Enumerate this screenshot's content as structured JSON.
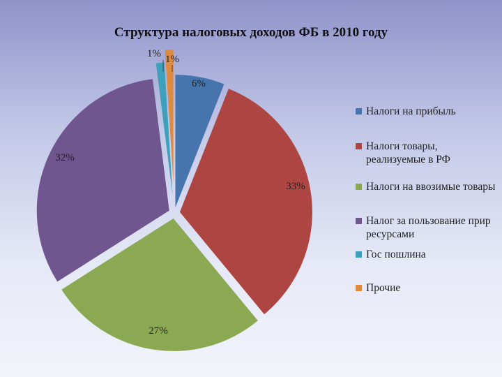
{
  "chart_data": {
    "type": "pie",
    "title": "Структура налоговых доходов ФБ в 2010 году",
    "slices": [
      {
        "name": "Налоги на прибыль",
        "value": 6,
        "label": "6%",
        "color": "#4674ac"
      },
      {
        "name": "Налоги товары, реализуемые в РФ",
        "value": 33,
        "label": "33%",
        "color": "#ad4643"
      },
      {
        "name": "Налоги на ввозимые товары",
        "value": 27,
        "label": "27%",
        "color": "#8ba953"
      },
      {
        "name": "Налог за пользование прир ресурсами",
        "value": 32,
        "label": "32%",
        "color": "#6f568f"
      },
      {
        "name": "Гос пошлина",
        "value": 1,
        "label": "1%",
        "color": "#3fa0bb"
      },
      {
        "name": "Прочие",
        "value": 1,
        "label": "1%",
        "color": "#de8a3f"
      }
    ],
    "legend_position": "right",
    "exploded": true
  }
}
